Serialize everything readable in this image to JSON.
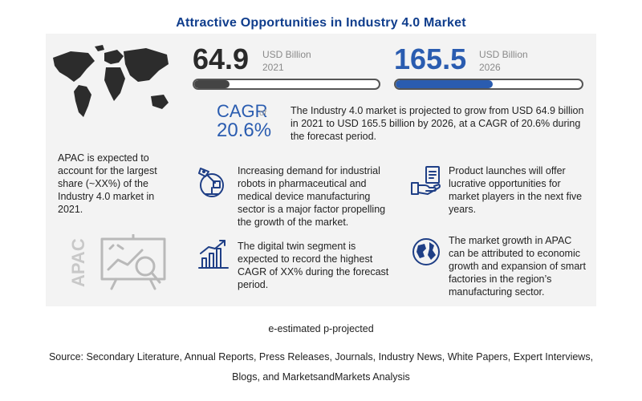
{
  "title": "Attractive Opportunities in Industry 4.0  Market",
  "metrics": {
    "current": {
      "value": "64.9",
      "unit": "USD Billion",
      "year": "2021",
      "fill_fraction": 0.19
    },
    "projected": {
      "value": "165.5",
      "unit": "USD Billion",
      "year": "2026",
      "fill_fraction": 0.52
    },
    "cagr_label": "CAGR",
    "cagr_of": "of",
    "cagr_value": "20.6%",
    "summary": "The Industry 4.0 market is projected to grow from USD 64.9 billion in 2021 to USD 165.5 billion by 2026, at a CAGR of 20.6% during the forecast period."
  },
  "region": {
    "text": "APAC is expected to account for the largest share (~XX%) of the Industry 4.0 market in 2021.",
    "vertical_label": "APAC"
  },
  "insights": [
    {
      "icon": "robot-arm-icon",
      "text": "Increasing demand for industrial robots in pharmaceutical and medical device manufacturing sector is a major factor propelling the growth of the market."
    },
    {
      "icon": "product-launch-icon",
      "text": "Product launches will offer lucrative opportunities for market players in the next five years."
    },
    {
      "icon": "growth-chart-icon",
      "text": "The digital twin segment is expected to record the highest CAGR of XX% during the forecast period."
    },
    {
      "icon": "globe-icon",
      "text": "The market growth in APAC can be attributed to economic growth and expansion of smart factories in the region’s manufacturing sector."
    }
  ],
  "footnote": "e-estimated p-projected",
  "source": "Source: Secondary Literature, Annual Reports, Press Releases, Journals, Industry News, White Papers, Expert Interviews, Blogs, and MarketsandMarkets Analysis",
  "colors": {
    "title": "#0f3d8c",
    "accent_blue": "#2a5cb0",
    "dark_fill": "#444444",
    "panel": "#f3f3f3"
  }
}
